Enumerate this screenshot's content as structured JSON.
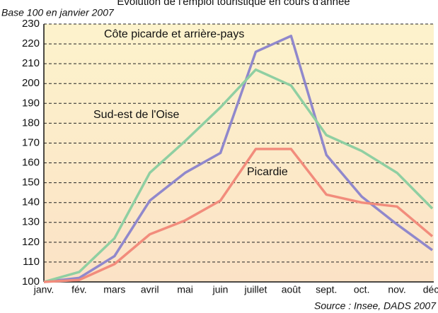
{
  "chart_data": {
    "type": "line",
    "title": "Évolution de l'emploi touristique en cours d'année",
    "subtitle": "Base 100 en janvier 2007",
    "source": "Source : Insee, DADS 2007",
    "categories": [
      "janv.",
      "fév.",
      "mars",
      "avril",
      "mai",
      "juin",
      "juillet",
      "août",
      "sept.",
      "oct.",
      "nov.",
      "déc."
    ],
    "series": [
      {
        "name": "Côte picarde et arrière-pays",
        "color": "#9088cc",
        "values": [
          100,
          102,
          113,
          141,
          155,
          165,
          216,
          224,
          164,
          143,
          129,
          116
        ]
      },
      {
        "name": "Sud-est de l'Oise",
        "color": "#8fcfa2",
        "values": [
          100,
          105,
          122,
          155,
          171,
          188,
          207,
          199,
          174,
          166,
          155,
          137
        ]
      },
      {
        "name": "Picardie",
        "color": "#f28c7c",
        "values": [
          100,
          101,
          109,
          124,
          131,
          141,
          167,
          167,
          144,
          140,
          138,
          123
        ]
      }
    ],
    "ylim": [
      100,
      230
    ],
    "yticks": [
      100,
      110,
      120,
      130,
      140,
      150,
      160,
      170,
      180,
      190,
      200,
      210,
      220,
      230
    ],
    "grid": true
  }
}
